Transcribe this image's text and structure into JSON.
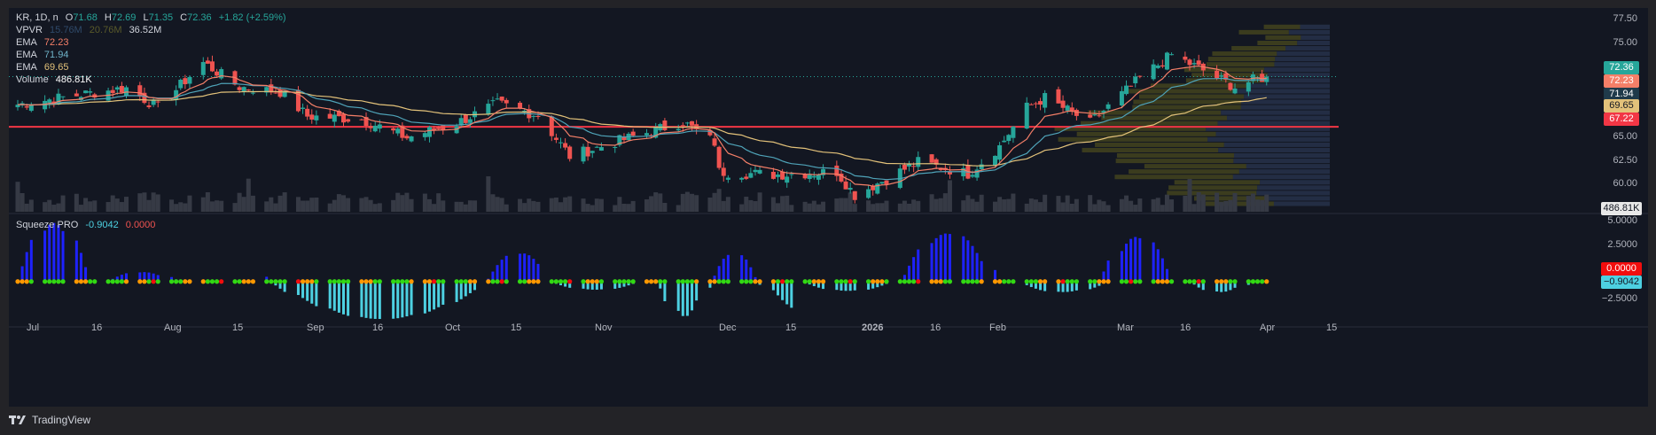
{
  "header": {
    "symbol": "KR, 1D, n",
    "open_label": "O",
    "open": "71.68",
    "high_label": "H",
    "high": "72.69",
    "low_label": "L",
    "low": "71.35",
    "close_label": "C",
    "close": "72.36",
    "change": "+1.82 (+2.59%)"
  },
  "indicators": {
    "vpvr": {
      "label": "VPVR",
      "v1": "15.76M",
      "v2": "20.76M",
      "v3": "36.52M"
    },
    "ema1": {
      "label": "EMA",
      "value": "72.23"
    },
    "ema2": {
      "label": "EMA",
      "value": "71.94"
    },
    "ema3": {
      "label": "EMA",
      "value": "69.65"
    },
    "volume": {
      "label": "Volume",
      "value": "486.81K"
    },
    "squeeze": {
      "label": "Squeeze PRO",
      "value1": "-0.9042",
      "value2": "0.0000"
    }
  },
  "price_axis": {
    "ticks": [
      "77.50",
      "75.00",
      "65.00",
      "62.50",
      "60.00"
    ],
    "tags": {
      "last": "72.36",
      "ema1": "72.23",
      "ema2": "71.94",
      "ema3": "69.65",
      "line": "67.22",
      "volume": "486.81K"
    }
  },
  "osc_axis": {
    "ticks": [
      "5.0000",
      "2.5000",
      "−2.5000"
    ],
    "tags": {
      "zero": "0.0000",
      "value": "−0.9042"
    }
  },
  "time_axis": {
    "labels": [
      "Jul",
      "16",
      "Aug",
      "15",
      "Sep",
      "16",
      "Oct",
      "15",
      "Nov",
      "Dec",
      "15",
      "2026",
      "16",
      "Feb",
      "Mar",
      "16",
      "Apr",
      "15"
    ]
  },
  "footer": {
    "brand": "TradingView"
  },
  "colors": {
    "up": "#26a69a",
    "down": "#ef5350",
    "ema1": "#f47f68",
    "ema2": "#4fa3b8",
    "ema3": "#e3c27a",
    "hline": "#f23645",
    "vp_up": "#4a4a1e",
    "vp_down": "#2a3550",
    "hist_pos": "#1e22ff",
    "hist_neg": "#4dd0e1"
  },
  "chart_data": {
    "type": "candlestick",
    "title": "KR, 1D",
    "horizontal_line": 67.22,
    "price_range": [
      58.5,
      78.5
    ],
    "osc_range": [
      -3.5,
      5.2
    ],
    "time_range": [
      "2025-07-01",
      "2026-04-15"
    ],
    "anchors": [
      {
        "date": "2025-07-01",
        "close": 69.5
      },
      {
        "date": "2025-07-16",
        "close": 70.6
      },
      {
        "date": "2025-07-25",
        "close": 71.2
      },
      {
        "date": "2025-08-01",
        "close": 69.2
      },
      {
        "date": "2025-08-11",
        "close": 73.8
      },
      {
        "date": "2025-08-19",
        "close": 71.3
      },
      {
        "date": "2025-08-28",
        "close": 70.8
      },
      {
        "date": "2025-09-03",
        "close": 68.3
      },
      {
        "date": "2025-09-15",
        "close": 68.0
      },
      {
        "date": "2025-09-25",
        "close": 66.1
      },
      {
        "date": "2025-10-06",
        "close": 67.6
      },
      {
        "date": "2025-10-15",
        "close": 69.6
      },
      {
        "date": "2025-10-24",
        "close": 68.4
      },
      {
        "date": "2025-10-31",
        "close": 64.2
      },
      {
        "date": "2025-11-14",
        "close": 66.2
      },
      {
        "date": "2025-11-25",
        "close": 67.7
      },
      {
        "date": "2025-12-02",
        "close": 65.6
      },
      {
        "date": "2025-12-03",
        "close": 62.6
      },
      {
        "date": "2025-12-15",
        "close": 62.3
      },
      {
        "date": "2025-12-29",
        "close": 62.6
      },
      {
        "date": "2026-01-02",
        "close": 60.2
      },
      {
        "date": "2026-01-16",
        "close": 63.6
      },
      {
        "date": "2026-01-27",
        "close": 62.4
      },
      {
        "date": "2026-02-03",
        "close": 65.2
      },
      {
        "date": "2026-02-09",
        "close": 69.2
      },
      {
        "date": "2026-02-13",
        "close": 70.2
      },
      {
        "date": "2026-02-23",
        "close": 67.6
      },
      {
        "date": "2026-03-06",
        "close": 72.2
      },
      {
        "date": "2026-03-13",
        "close": 74.6
      },
      {
        "date": "2026-03-20",
        "close": 73.0
      },
      {
        "date": "2026-03-27",
        "close": 71.3
      },
      {
        "date": "2026-03-31",
        "close": 72.0
      },
      {
        "date": "2026-04-03",
        "close": 72.36
      }
    ]
  }
}
